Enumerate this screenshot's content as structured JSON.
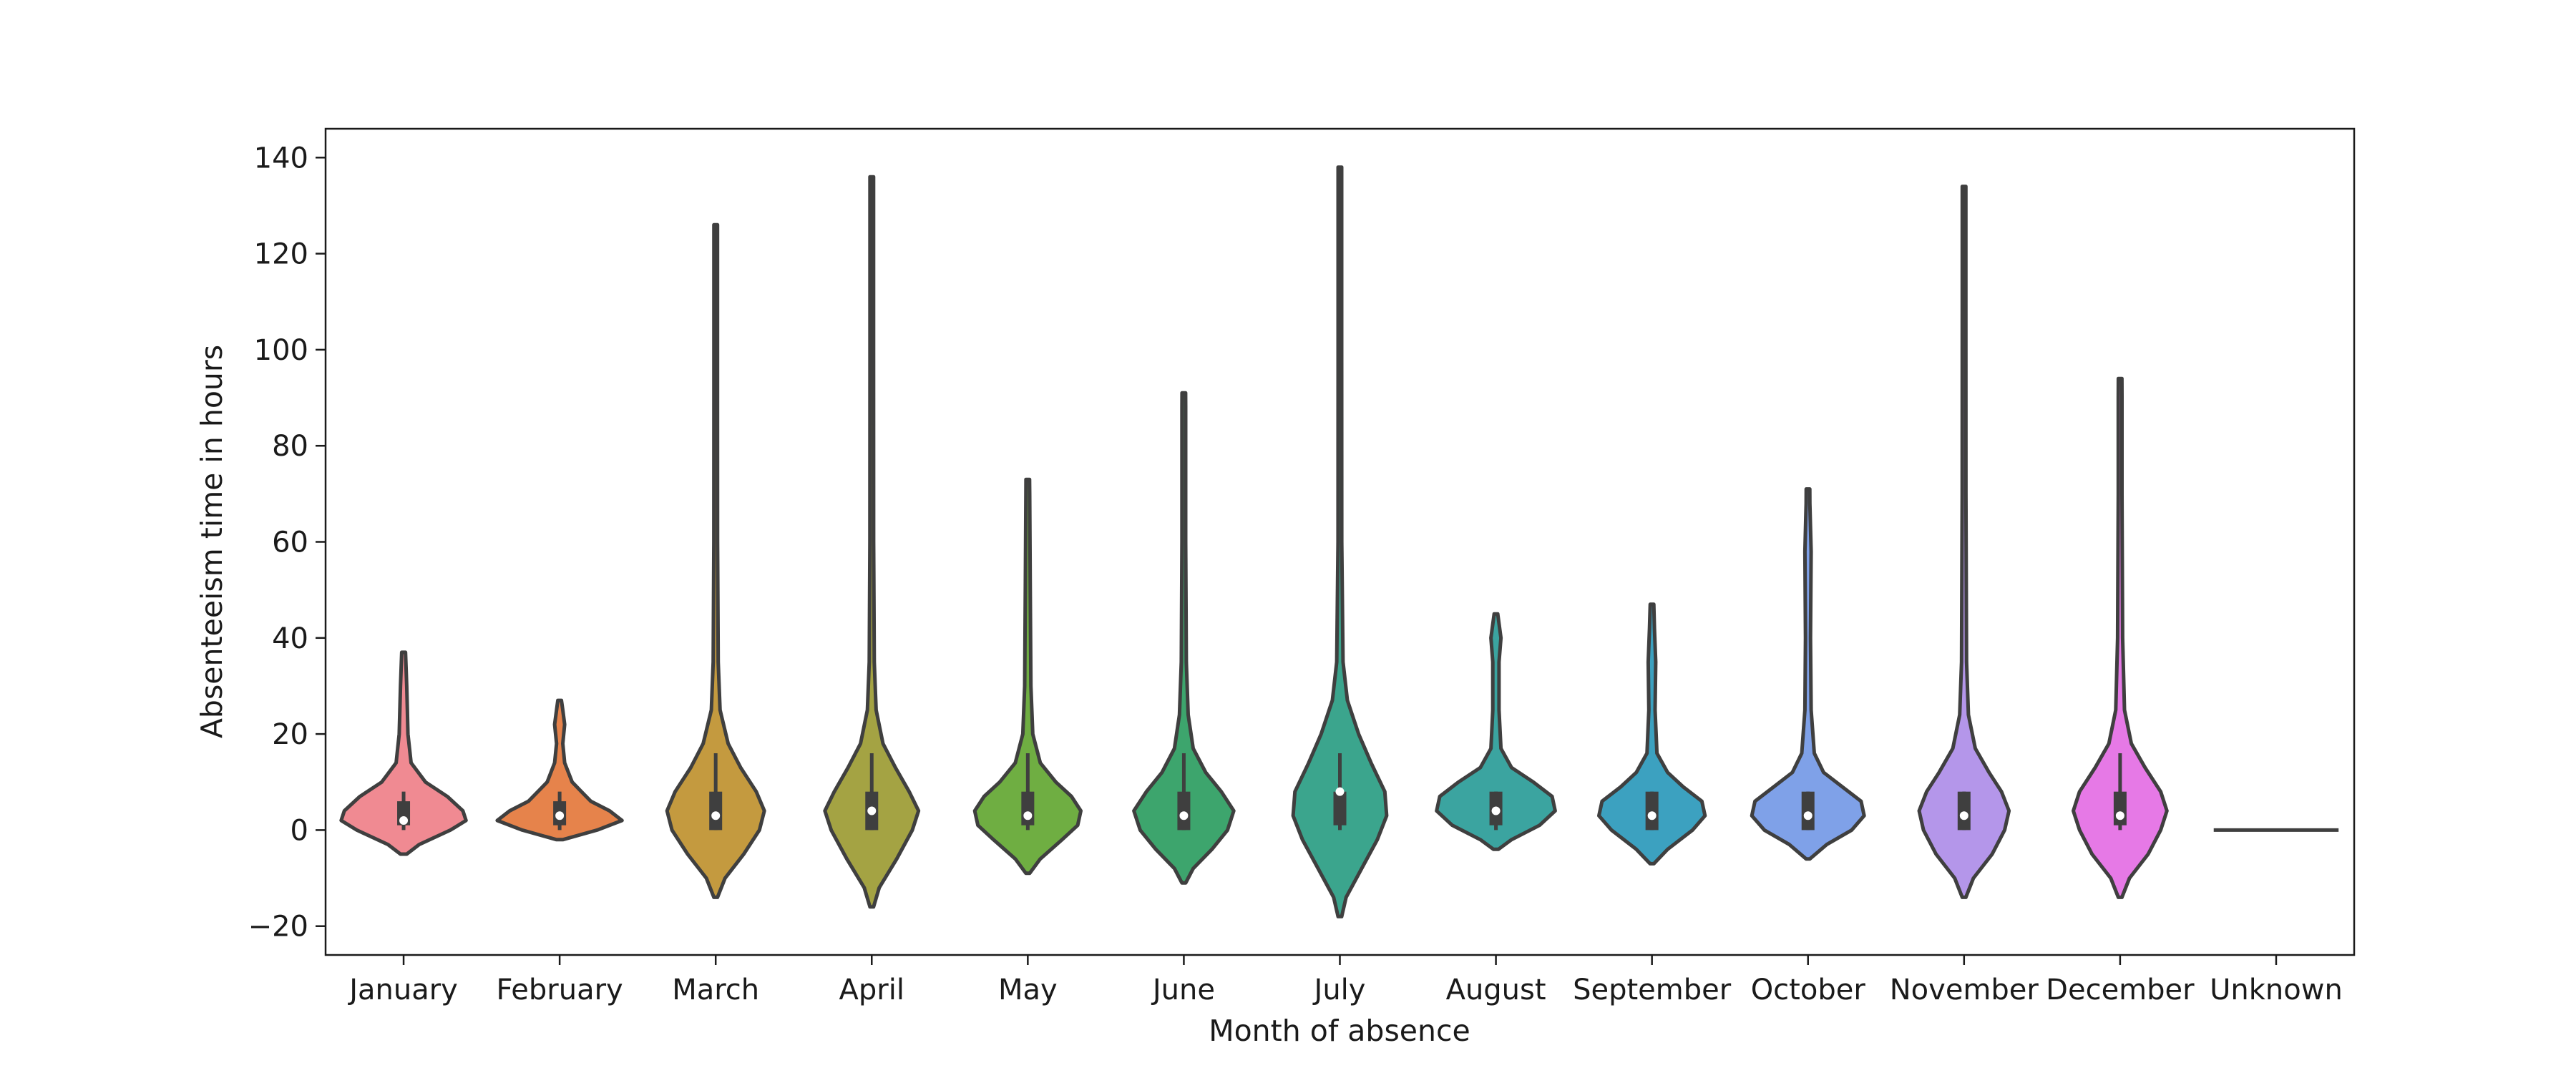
{
  "chart_data": {
    "type": "violin",
    "xlabel": "Month of absence",
    "ylabel": "Absenteeism time in hours",
    "ylim": [
      -26,
      146
    ],
    "yticks": [
      -20,
      0,
      20,
      40,
      60,
      80,
      100,
      120,
      140
    ],
    "ytick_labels": [
      "−20",
      "0",
      "20",
      "40",
      "60",
      "80",
      "100",
      "120",
      "140"
    ],
    "grid": false,
    "legend": "none",
    "categories": [
      "January",
      "February",
      "March",
      "April",
      "May",
      "June",
      "July",
      "August",
      "September",
      "October",
      "November",
      "December",
      "Unknown"
    ],
    "violins": [
      {
        "category": "January",
        "color": "#f08a92",
        "min": -5,
        "max": 37,
        "q1": 1,
        "median": 2,
        "q3": 6,
        "whisker_low": 0,
        "whisker_high": 8,
        "profile": [
          [
            -5,
            0.05
          ],
          [
            -3,
            0.25
          ],
          [
            0,
            0.75
          ],
          [
            2,
            1.0
          ],
          [
            4,
            0.95
          ],
          [
            7,
            0.7
          ],
          [
            10,
            0.35
          ],
          [
            14,
            0.12
          ],
          [
            20,
            0.07
          ],
          [
            25,
            0.06
          ],
          [
            30,
            0.05
          ],
          [
            37,
            0.03
          ]
        ]
      },
      {
        "category": "February",
        "color": "#e6834b",
        "min": -2,
        "max": 27,
        "q1": 1,
        "median": 3,
        "q3": 6,
        "whisker_low": 0,
        "whisker_high": 8,
        "profile": [
          [
            -2,
            0.05
          ],
          [
            0,
            0.6
          ],
          [
            2,
            1.0
          ],
          [
            4,
            0.8
          ],
          [
            6,
            0.5
          ],
          [
            8,
            0.35
          ],
          [
            10,
            0.2
          ],
          [
            14,
            0.08
          ],
          [
            18,
            0.05
          ],
          [
            22,
            0.08
          ],
          [
            25,
            0.05
          ],
          [
            27,
            0.02
          ]
        ]
      },
      {
        "category": "March",
        "color": "#c49a3f",
        "min": -14,
        "max": 126,
        "q1": 0,
        "median": 3,
        "q3": 8,
        "whisker_low": 0,
        "whisker_high": 16,
        "profile": [
          [
            -14,
            0.02
          ],
          [
            -10,
            0.15
          ],
          [
            -5,
            0.45
          ],
          [
            0,
            0.7
          ],
          [
            4,
            0.78
          ],
          [
            8,
            0.65
          ],
          [
            13,
            0.4
          ],
          [
            18,
            0.2
          ],
          [
            25,
            0.07
          ],
          [
            35,
            0.04
          ],
          [
            60,
            0.03
          ],
          [
            90,
            0.025
          ],
          [
            120,
            0.02
          ],
          [
            126,
            0.01
          ]
        ]
      },
      {
        "category": "April",
        "color": "#a4a343",
        "min": -16,
        "max": 136,
        "q1": 0,
        "median": 4,
        "q3": 8,
        "whisker_low": 0,
        "whisker_high": 16,
        "profile": [
          [
            -16,
            0.02
          ],
          [
            -12,
            0.12
          ],
          [
            -6,
            0.4
          ],
          [
            0,
            0.65
          ],
          [
            4,
            0.75
          ],
          [
            8,
            0.6
          ],
          [
            13,
            0.38
          ],
          [
            18,
            0.18
          ],
          [
            25,
            0.07
          ],
          [
            35,
            0.04
          ],
          [
            60,
            0.03
          ],
          [
            100,
            0.025
          ],
          [
            130,
            0.02
          ],
          [
            136,
            0.01
          ]
        ]
      },
      {
        "category": "May",
        "color": "#6fae42",
        "min": -9,
        "max": 73,
        "q1": 1,
        "median": 3,
        "q3": 8,
        "whisker_low": 0,
        "whisker_high": 16,
        "profile": [
          [
            -9,
            0.03
          ],
          [
            -6,
            0.2
          ],
          [
            -2,
            0.55
          ],
          [
            1,
            0.8
          ],
          [
            4,
            0.85
          ],
          [
            7,
            0.7
          ],
          [
            10,
            0.45
          ],
          [
            14,
            0.2
          ],
          [
            20,
            0.08
          ],
          [
            30,
            0.05
          ],
          [
            50,
            0.04
          ],
          [
            70,
            0.03
          ],
          [
            73,
            0.01
          ]
        ]
      },
      {
        "category": "June",
        "color": "#3da56d",
        "min": -11,
        "max": 91,
        "q1": 0,
        "median": 3,
        "q3": 8,
        "whisker_low": 0,
        "whisker_high": 16,
        "profile": [
          [
            -11,
            0.03
          ],
          [
            -8,
            0.15
          ],
          [
            -4,
            0.45
          ],
          [
            0,
            0.7
          ],
          [
            4,
            0.8
          ],
          [
            8,
            0.6
          ],
          [
            12,
            0.35
          ],
          [
            17,
            0.15
          ],
          [
            24,
            0.07
          ],
          [
            35,
            0.04
          ],
          [
            60,
            0.03
          ],
          [
            88,
            0.03
          ],
          [
            91,
            0.01
          ]
        ]
      },
      {
        "category": "July",
        "color": "#3ba58d",
        "min": -18,
        "max": 138,
        "q1": 1,
        "median": 8,
        "q3": 8,
        "whisker_low": 0,
        "whisker_high": 16,
        "profile": [
          [
            -18,
            0.02
          ],
          [
            -14,
            0.1
          ],
          [
            -8,
            0.35
          ],
          [
            -2,
            0.6
          ],
          [
            3,
            0.75
          ],
          [
            8,
            0.72
          ],
          [
            14,
            0.5
          ],
          [
            20,
            0.3
          ],
          [
            27,
            0.12
          ],
          [
            35,
            0.05
          ],
          [
            60,
            0.03
          ],
          [
            100,
            0.025
          ],
          [
            135,
            0.02
          ],
          [
            138,
            0.01
          ]
        ]
      },
      {
        "category": "August",
        "color": "#3ba4a0",
        "min": -4,
        "max": 45,
        "q1": 1,
        "median": 4,
        "q3": 8,
        "whisker_low": 0,
        "whisker_high": 8,
        "profile": [
          [
            -4,
            0.04
          ],
          [
            -2,
            0.25
          ],
          [
            1,
            0.7
          ],
          [
            4,
            0.95
          ],
          [
            7,
            0.9
          ],
          [
            10,
            0.6
          ],
          [
            13,
            0.25
          ],
          [
            17,
            0.08
          ],
          [
            25,
            0.05
          ],
          [
            35,
            0.05
          ],
          [
            40,
            0.08
          ],
          [
            45,
            0.02
          ]
        ]
      },
      {
        "category": "September",
        "color": "#3ca1c0",
        "min": -7,
        "max": 47,
        "q1": 0,
        "median": 3,
        "q3": 8,
        "whisker_low": 0,
        "whisker_high": 8,
        "profile": [
          [
            -7,
            0.03
          ],
          [
            -4,
            0.25
          ],
          [
            0,
            0.65
          ],
          [
            3,
            0.85
          ],
          [
            6,
            0.8
          ],
          [
            9,
            0.5
          ],
          [
            12,
            0.25
          ],
          [
            16,
            0.08
          ],
          [
            25,
            0.05
          ],
          [
            35,
            0.06
          ],
          [
            42,
            0.04
          ],
          [
            47,
            0.02
          ]
        ]
      },
      {
        "category": "October",
        "color": "#7fa1e8",
        "min": -6,
        "max": 71,
        "q1": 0,
        "median": 3,
        "q3": 8,
        "whisker_low": 0,
        "whisker_high": 8,
        "profile": [
          [
            -6,
            0.03
          ],
          [
            -3,
            0.3
          ],
          [
            0,
            0.7
          ],
          [
            3,
            0.9
          ],
          [
            6,
            0.85
          ],
          [
            9,
            0.55
          ],
          [
            12,
            0.25
          ],
          [
            16,
            0.1
          ],
          [
            25,
            0.05
          ],
          [
            40,
            0.04
          ],
          [
            58,
            0.05
          ],
          [
            68,
            0.03
          ],
          [
            71,
            0.01
          ]
        ]
      },
      {
        "category": "November",
        "color": "#b496ea",
        "min": -14,
        "max": 134,
        "q1": 0,
        "median": 3,
        "q3": 8,
        "whisker_low": 0,
        "whisker_high": 8,
        "profile": [
          [
            -14,
            0.02
          ],
          [
            -10,
            0.15
          ],
          [
            -5,
            0.45
          ],
          [
            0,
            0.65
          ],
          [
            4,
            0.72
          ],
          [
            8,
            0.6
          ],
          [
            12,
            0.4
          ],
          [
            17,
            0.18
          ],
          [
            24,
            0.07
          ],
          [
            35,
            0.04
          ],
          [
            70,
            0.03
          ],
          [
            110,
            0.025
          ],
          [
            130,
            0.02
          ],
          [
            134,
            0.01
          ]
        ]
      },
      {
        "category": "December",
        "color": "#e679e6",
        "min": -14,
        "max": 94,
        "q1": 1,
        "median": 3,
        "q3": 8,
        "whisker_low": 0,
        "whisker_high": 16,
        "profile": [
          [
            -14,
            0.02
          ],
          [
            -10,
            0.15
          ],
          [
            -5,
            0.45
          ],
          [
            0,
            0.65
          ],
          [
            4,
            0.75
          ],
          [
            8,
            0.65
          ],
          [
            13,
            0.4
          ],
          [
            18,
            0.18
          ],
          [
            25,
            0.07
          ],
          [
            40,
            0.04
          ],
          [
            70,
            0.03
          ],
          [
            90,
            0.03
          ],
          [
            94,
            0.01
          ]
        ]
      },
      {
        "category": "Unknown",
        "color": "#f08a92",
        "min": 0,
        "max": 0,
        "q1": 0,
        "median": 0,
        "q3": 0,
        "whisker_low": 0,
        "whisker_high": 0,
        "profile": []
      }
    ]
  }
}
